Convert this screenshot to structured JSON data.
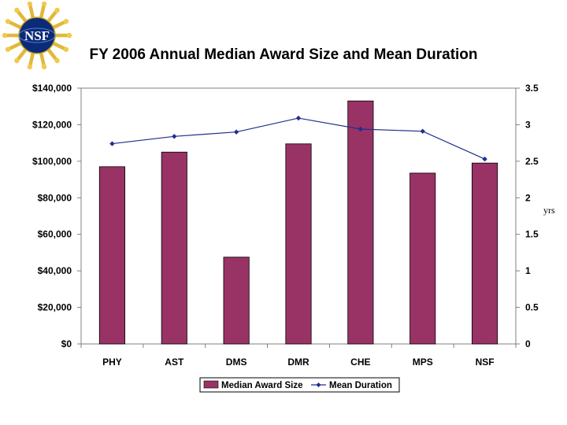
{
  "logo": {
    "text": "NSF"
  },
  "chart_data": {
    "type": "bar",
    "title": "FY 2006 Annual Median Award Size and Mean Duration",
    "categories": [
      "PHY",
      "AST",
      "DMS",
      "DMR",
      "CHE",
      "MPS",
      "NSF"
    ],
    "series": [
      {
        "name": "Median Award Size",
        "type": "bar",
        "axis": "left",
        "color": "#993366",
        "values": [
          97000,
          105000,
          47500,
          109500,
          133000,
          93500,
          99000
        ]
      },
      {
        "name": "Mean Duration",
        "type": "line",
        "axis": "right",
        "color": "#1f2f8c",
        "values": [
          2.74,
          2.84,
          2.9,
          3.09,
          2.94,
          2.91,
          2.53
        ]
      }
    ],
    "y_left": {
      "ylim": [
        0,
        140000
      ],
      "ticks": [
        0,
        20000,
        40000,
        60000,
        80000,
        100000,
        120000,
        140000
      ],
      "tick_labels": [
        "$0",
        "$20,000",
        "$40,000",
        "$60,000",
        "$80,000",
        "$100,000",
        "$120,000",
        "$140,000"
      ]
    },
    "y_right": {
      "ylim": [
        0,
        3.5
      ],
      "ticks": [
        0,
        0.5,
        1,
        1.5,
        2,
        2.5,
        3,
        3.5
      ],
      "tick_labels": [
        "0",
        "0.5",
        "1",
        "1.5",
        "2",
        "2.5",
        "3",
        "3.5"
      ],
      "unit_label": "yrs"
    },
    "grid": false,
    "legend_position": "bottom"
  }
}
